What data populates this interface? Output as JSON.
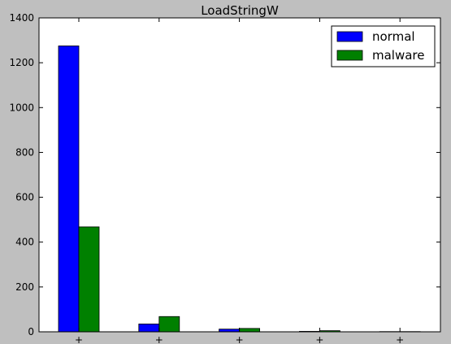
{
  "chart_data": {
    "type": "bar",
    "title": "LoadStringW",
    "xlabel": "",
    "ylabel": "",
    "ylim": [
      0,
      1400
    ],
    "yticks": [
      0,
      200,
      400,
      600,
      800,
      1000,
      1200,
      1400
    ],
    "categories": [
      "+",
      "+",
      "+",
      "+",
      "+"
    ],
    "series": [
      {
        "name": "normal",
        "color": "#0000ff",
        "values": [
          1275,
          35,
          12,
          2,
          1
        ]
      },
      {
        "name": "malware",
        "color": "#008000",
        "values": [
          468,
          68,
          15,
          5,
          1
        ]
      }
    ],
    "grid": false,
    "legend": "top-right"
  }
}
